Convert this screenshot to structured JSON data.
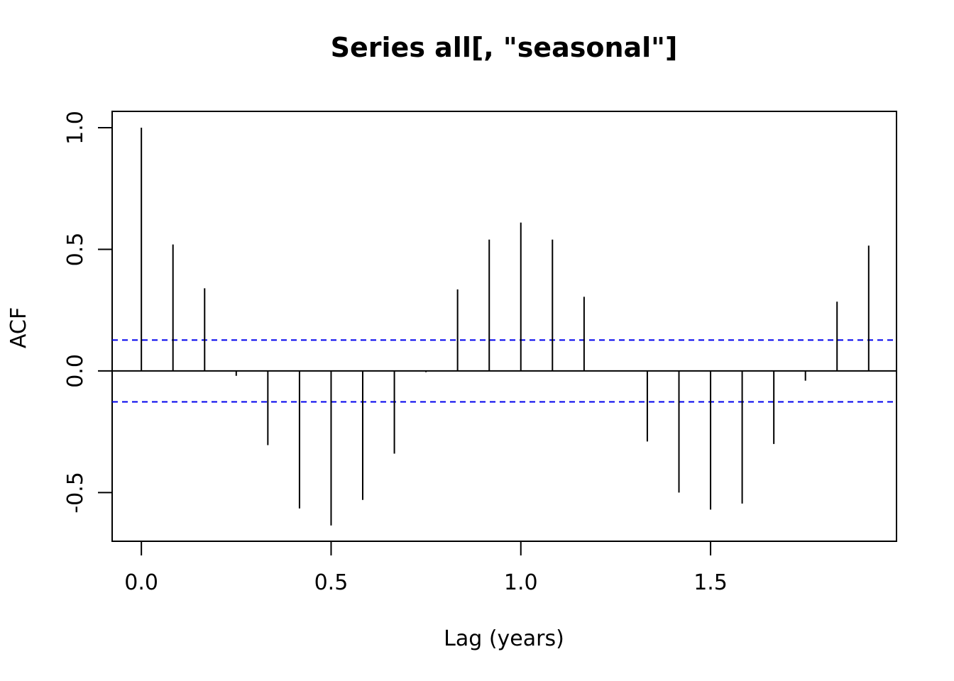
{
  "chart_data": {
    "type": "bar",
    "title": "Series  all[, \"seasonal\"]",
    "xlabel": "Lag (years)",
    "ylabel": "ACF",
    "xlim": [
      -0.077,
      1.99
    ],
    "ylim": [
      -0.7,
      1.067
    ],
    "xticks": [
      {
        "value": 0.0,
        "label": "0.0"
      },
      {
        "value": 0.5,
        "label": "0.5"
      },
      {
        "value": 1.0,
        "label": "1.0"
      },
      {
        "value": 1.5,
        "label": "1.5"
      }
    ],
    "yticks": [
      {
        "value": -0.5,
        "label": "-0.5"
      },
      {
        "value": 0.0,
        "label": "0.0"
      },
      {
        "value": 0.5,
        "label": "0.5"
      },
      {
        "value": 1.0,
        "label": "1.0"
      }
    ],
    "lags": [
      0.0,
      0.0833,
      0.1667,
      0.25,
      0.3333,
      0.4167,
      0.5,
      0.5833,
      0.6667,
      0.75,
      0.8333,
      0.9167,
      1.0,
      1.0833,
      1.1667,
      1.25,
      1.3333,
      1.4167,
      1.5,
      1.5833,
      1.6667,
      1.75,
      1.8333,
      1.9167
    ],
    "acf": [
      1.0,
      0.52,
      0.34,
      -0.02,
      -0.305,
      -0.565,
      -0.635,
      -0.53,
      -0.34,
      -0.005,
      0.335,
      0.54,
      0.61,
      0.54,
      0.305,
      0.0,
      -0.29,
      -0.5,
      -0.57,
      -0.545,
      -0.3,
      -0.04,
      0.285,
      0.515
    ],
    "confidence_bound": 0.127,
    "colors": {
      "spike": "#000000",
      "bound": "#0000ee",
      "axis": "#000000"
    },
    "grid": false
  }
}
